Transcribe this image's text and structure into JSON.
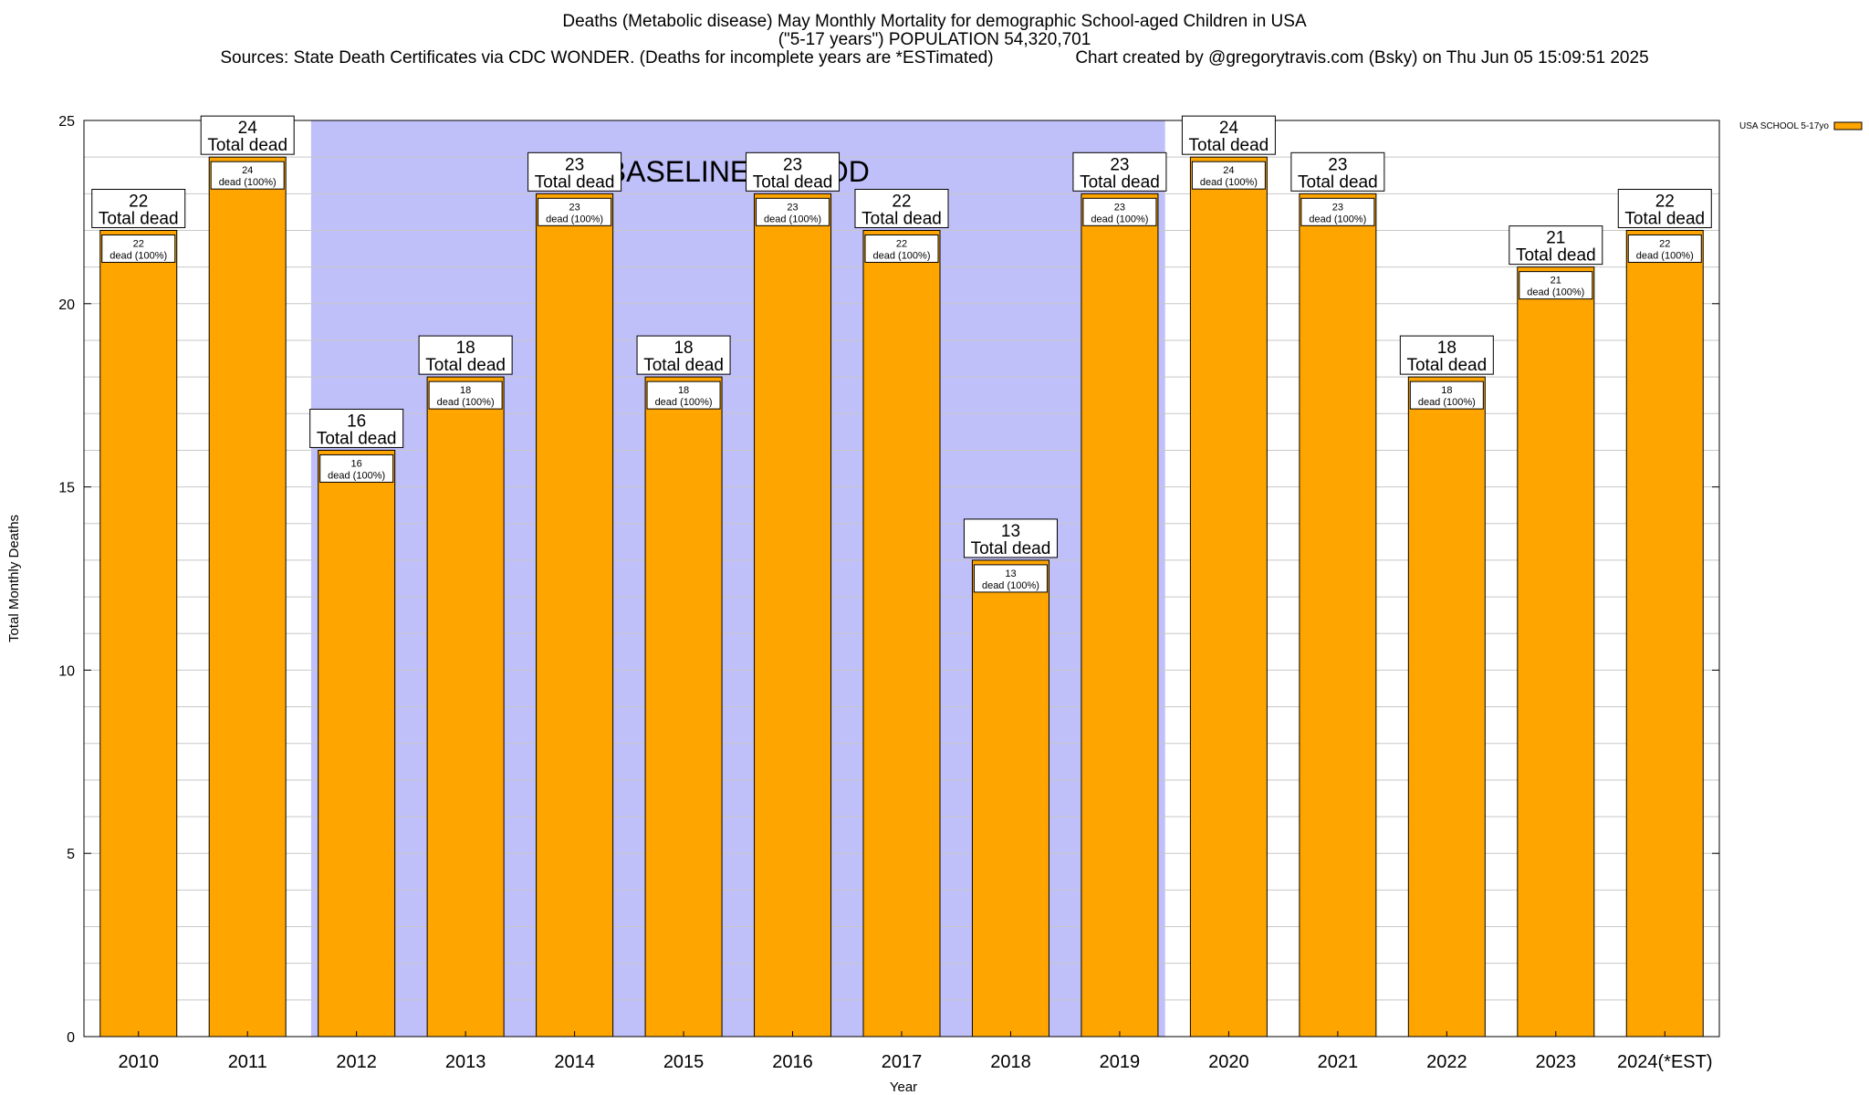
{
  "header": {
    "title": "Deaths (Metabolic disease) May Monthly Mortality for demographic School-aged Children in USA",
    "subtitle": "(\"5-17 years\") POPULATION 54,320,701",
    "sources": "Sources: State Death Certificates via CDC WONDER. (Deaths for incomplete years are *ESTimated)",
    "credit": "Chart created by @gregorytravis.com (Bsky) on Thu Jun 05 15:09:51 2025"
  },
  "chart_data": {
    "type": "bar",
    "categories": [
      "2010",
      "2011",
      "2012",
      "2013",
      "2014",
      "2015",
      "2016",
      "2017",
      "2018",
      "2019",
      "2020",
      "2021",
      "2022",
      "2023",
      "2024(*EST)"
    ],
    "series": [
      {
        "name": "USA SCHOOL 5-17yo",
        "values": [
          22,
          24,
          16,
          18,
          23,
          18,
          23,
          22,
          13,
          23,
          24,
          23,
          18,
          21,
          22
        ]
      }
    ],
    "xlabel": "Year",
    "ylabel": "Total Monthly Deaths",
    "ylim": [
      0,
      25
    ],
    "yticks": [
      0,
      5,
      10,
      15,
      20,
      25
    ],
    "grid": true,
    "legend_position": "top-right",
    "bar_color": "#ffa500",
    "top_label_suffix": "Total dead",
    "inner_label_suffix": "dead (100%)",
    "shaded_region": {
      "label": "BASELINE PERIOD",
      "from_category": "2012",
      "to_category": "2019",
      "color": "#bfbffa"
    }
  }
}
